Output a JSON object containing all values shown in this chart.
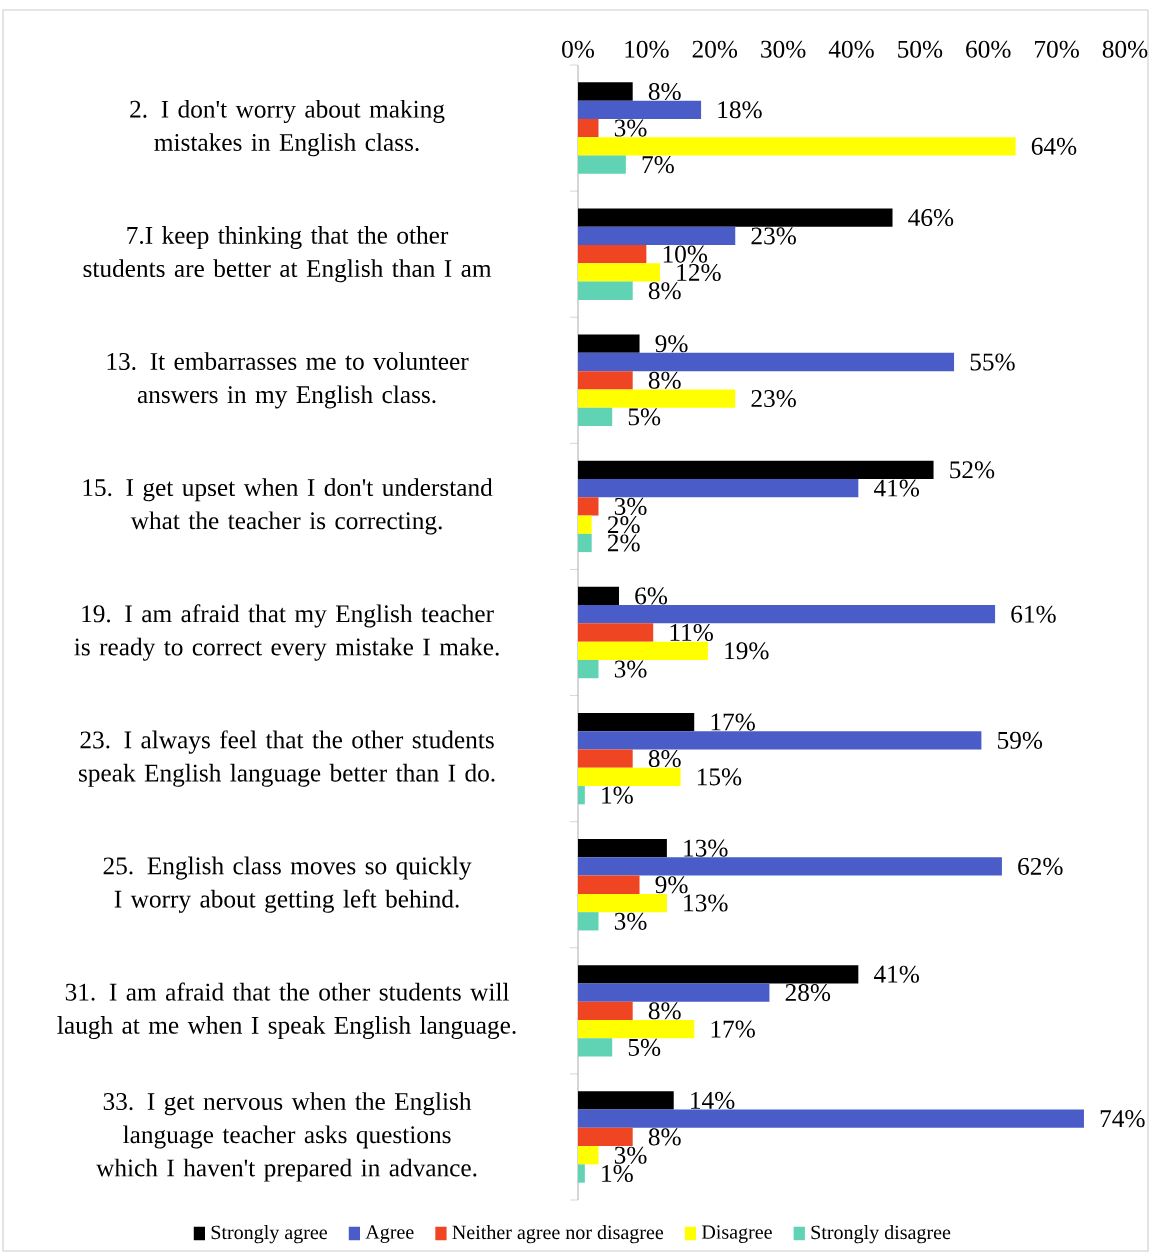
{
  "chart_data": {
    "type": "bar",
    "orientation": "horizontal",
    "legend": "bottom",
    "categories": [
      "2. I don't worry about making mistakes in English class.",
      "7.I keep thinking that the other students are better at English than I am",
      "13. It embarrasses me to volunteer answers in my English class.",
      "15. I get upset when I don't understand what the teacher is correcting.",
      "19. I am afraid that my English teacher is ready to correct every mistake I make.",
      "23. I always feel that the other students speak English language better than I do.",
      "25. English class moves so quickly I worry about getting left behind.",
      "31. I am afraid that the other students will laugh at me when I speak English language.",
      "33. I get nervous when the English language teacher asks questions which I haven't prepared in advance."
    ],
    "series": [
      {
        "name": "Strongly agree",
        "color": "#000000",
        "values": [
          8,
          46,
          9,
          52,
          6,
          17,
          13,
          41,
          14
        ],
        "value_labels": [
          "8%",
          "46%",
          "9%",
          "52%",
          "6%",
          "17%",
          "13%",
          "41%",
          "14%"
        ]
      },
      {
        "name": "Agree",
        "color": "#4a5cc8",
        "values": [
          18,
          23,
          55,
          41,
          61,
          59,
          62,
          28,
          74
        ],
        "value_labels": [
          "18%",
          "23%",
          "55%",
          "41%",
          "61%",
          "59%",
          "62%",
          "28%",
          "74%"
        ]
      },
      {
        "name": "Neither agree nor disagree",
        "color": "#f04523",
        "values": [
          3,
          10,
          8,
          3,
          11,
          8,
          9,
          8,
          8
        ],
        "value_labels": [
          "3%",
          "10%",
          "8%",
          "3%",
          "11%",
          "8%",
          "9%",
          "8%",
          "8%"
        ]
      },
      {
        "name": "Disagree",
        "color": "#ffff00",
        "values": [
          64,
          12,
          23,
          2,
          19,
          15,
          13,
          17,
          3
        ],
        "value_labels": [
          "64%",
          "12%",
          "23%",
          "2%",
          "19%",
          "15%",
          "13%",
          "17%",
          "3%"
        ]
      },
      {
        "name": "Strongly disagree",
        "color": "#5fd3b4",
        "values": [
          7,
          8,
          5,
          2,
          3,
          1,
          3,
          5,
          1
        ],
        "value_labels": [
          "7%",
          "8%",
          "5%",
          "2%",
          "3%",
          "1%",
          "3%",
          "5%",
          "1%"
        ]
      }
    ],
    "xlim": [
      0,
      80
    ],
    "xticks": [
      {
        "value": 0,
        "label": "0%"
      },
      {
        "value": 10,
        "label": "10%"
      },
      {
        "value": 20,
        "label": "20%"
      },
      {
        "value": 30,
        "label": "30%"
      },
      {
        "value": 40,
        "label": "40%"
      },
      {
        "value": 50,
        "label": "50%"
      },
      {
        "value": 60,
        "label": "60%"
      },
      {
        "value": 70,
        "label": "70%"
      },
      {
        "value": 80,
        "label": "80%"
      }
    ]
  }
}
